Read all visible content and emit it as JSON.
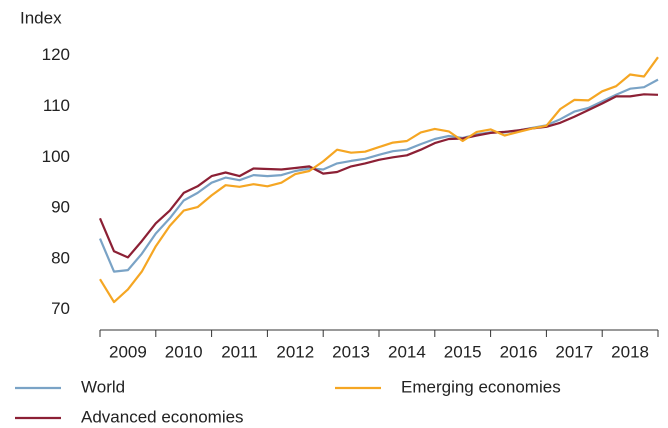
{
  "chart_data": {
    "type": "line",
    "y_label": "Index",
    "x": [
      2009,
      2009.25,
      2009.5,
      2009.75,
      2010,
      2010.25,
      2010.5,
      2010.75,
      2011,
      2011.25,
      2011.5,
      2011.75,
      2012,
      2012.25,
      2012.5,
      2012.75,
      2013,
      2013.25,
      2013.5,
      2013.75,
      2014,
      2014.25,
      2014.5,
      2014.75,
      2015,
      2015.25,
      2015.5,
      2015.75,
      2016,
      2016.25,
      2016.5,
      2016.75,
      2017,
      2017.25,
      2017.5,
      2017.75,
      2018,
      2018.25,
      2018.5,
      2018.75,
      2019
    ],
    "series": [
      {
        "name": "World",
        "color": "#7aa3c6",
        "values": [
          84,
          77.5,
          77.8,
          81,
          85,
          88,
          91.5,
          93,
          95,
          96,
          95.5,
          96.5,
          96.3,
          96.5,
          97.3,
          97.8,
          97.6,
          98.8,
          99.3,
          99.7,
          100.5,
          101.2,
          101.5,
          102.6,
          103.6,
          104.2,
          103.8,
          104.5,
          104.9,
          104.9,
          105.3,
          105.8,
          106.3,
          107.5,
          109,
          109.7,
          111,
          112.3,
          113.5,
          113.8,
          115.3
        ]
      },
      {
        "name": "Advanced economies",
        "color": "#8c2035",
        "values": [
          88,
          81.5,
          80.3,
          83.5,
          87,
          89.5,
          93,
          94.3,
          96.3,
          97,
          96.3,
          97.8,
          97.7,
          97.6,
          97.9,
          98.2,
          96.8,
          97.1,
          98.2,
          98.8,
          99.5,
          100,
          100.4,
          101.5,
          102.8,
          103.6,
          103.7,
          104.3,
          104.8,
          105,
          105.3,
          105.7,
          106,
          106.8,
          108,
          109.3,
          110.6,
          112,
          112,
          112.4,
          112.3
        ]
      },
      {
        "name": "Emerging economies",
        "color": "#f5a623",
        "values": [
          76,
          71.5,
          74,
          77.5,
          82.5,
          86.5,
          89.5,
          90.2,
          92.5,
          94.5,
          94.2,
          94.7,
          94.3,
          95,
          96.7,
          97.3,
          99.2,
          101.5,
          100.9,
          101.1,
          102,
          102.9,
          103.2,
          104.9,
          105.6,
          105.1,
          103.2,
          105,
          105.5,
          104.3,
          105,
          105.7,
          106.2,
          109.5,
          111.3,
          111.2,
          113,
          114,
          116.3,
          115.9,
          119.7
        ]
      }
    ],
    "xlim": [
      2009,
      2019
    ],
    "xticks": [
      2009,
      2010,
      2011,
      2012,
      2013,
      2014,
      2015,
      2016,
      2017,
      2018
    ],
    "ylim": [
      66,
      124
    ],
    "yticks": [
      70,
      80,
      90,
      100,
      110,
      120
    ]
  }
}
